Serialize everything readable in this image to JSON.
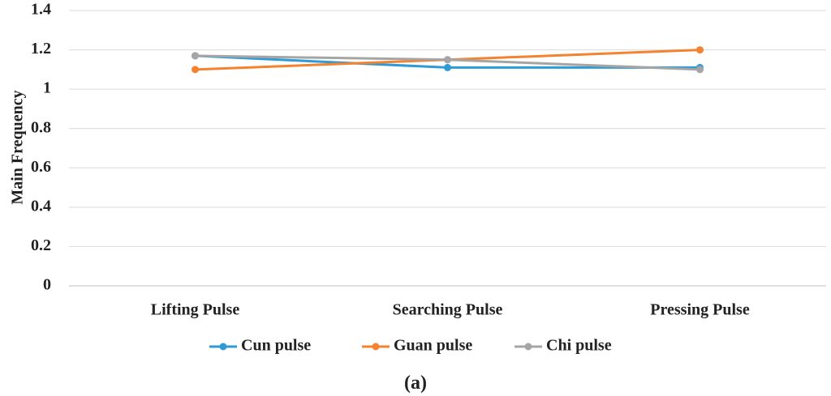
{
  "chart_data": {
    "type": "line",
    "title": "",
    "xlabel": "",
    "ylabel": "Main Frequency",
    "categories": [
      "Lifting Pulse",
      "Searching Pulse",
      "Pressing Pulse"
    ],
    "ylim": [
      0,
      1.4
    ],
    "yticks": [
      "0",
      "0.2",
      "0.4",
      "0.6",
      "0.8",
      "1",
      "1.2",
      "1.4"
    ],
    "grid": true,
    "legend_position": "bottom",
    "series": [
      {
        "name": "Cun pulse",
        "color": "#2E9BD6",
        "values": [
          1.17,
          1.11,
          1.11
        ]
      },
      {
        "name": "Guan pulse",
        "color": "#F4822F",
        "values": [
          1.1,
          1.15,
          1.2
        ]
      },
      {
        "name": "Chi pulse",
        "color": "#A5A5A5",
        "values": [
          1.17,
          1.15,
          1.1
        ]
      }
    ]
  },
  "caption": {
    "open": "(",
    "letter": "a",
    "close": ")"
  }
}
